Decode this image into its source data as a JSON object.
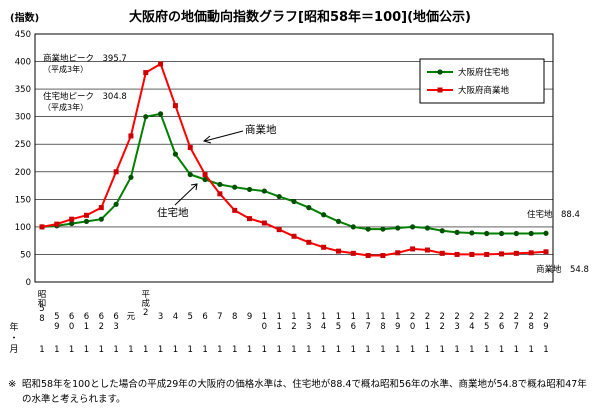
{
  "page": {
    "title": "大阪府の地価動向指数グラフ[昭和58年＝100](地価公示)",
    "y_unit": "(指数)",
    "note_mark": "※",
    "note": "昭和58年を100とした場合の平成29年の大阪府の価格水準は、住宅地が88.4で概ね昭和56年の水準、商業地が54.8で概ね昭和47年の水準と考えられます。"
  },
  "colors": {
    "residential": "#008000",
    "commercial": "#ff0000",
    "marker_res": "#005000",
    "marker_com": "#cc0000"
  },
  "chart_data": {
    "type": "line",
    "title": "大阪府の地価動向指数グラフ[昭和58年＝100](地価公示)",
    "ylabel": "(指数)",
    "xlabel": "年・月",
    "ylim": [
      0,
      450
    ],
    "yticks": [
      0,
      50,
      100,
      150,
      200,
      250,
      300,
      350,
      400,
      450
    ],
    "grid": true,
    "legend": "top-right",
    "era_labels": [
      {
        "text": "昭和",
        "index": 0
      },
      {
        "text": "平成",
        "index": 7
      }
    ],
    "categories": [
      "58",
      "59",
      "60",
      "61",
      "62",
      "63",
      "元",
      "2",
      "3",
      "4",
      "5",
      "6",
      "7",
      "8",
      "9",
      "10",
      "11",
      "12",
      "13",
      "14",
      "15",
      "16",
      "17",
      "18",
      "19",
      "20",
      "21",
      "22",
      "23",
      "24",
      "25",
      "26",
      "27",
      "28",
      "29"
    ],
    "month_label": "1",
    "series": [
      {
        "name": "大阪府住宅地",
        "values": [
          100,
          102,
          106,
          110,
          114,
          141,
          190,
          300,
          305,
          232,
          195,
          186,
          177,
          172,
          168,
          165,
          155,
          146,
          135,
          122,
          110,
          100,
          96,
          96,
          98,
          100,
          98,
          93,
          90,
          89,
          88,
          88,
          88,
          88,
          88.4
        ]
      },
      {
        "name": "大阪府商業地",
        "values": [
          100,
          105,
          114,
          121,
          135,
          200,
          265,
          380,
          395.7,
          320,
          244,
          195,
          160,
          130,
          115,
          107,
          95,
          83,
          72,
          63,
          56,
          52,
          48,
          48,
          53,
          60,
          58,
          52,
          50,
          50,
          50,
          51,
          52,
          53,
          54.8
        ]
      }
    ],
    "annotations": {
      "com_peak": "商業地ピーク　395.7",
      "com_peak_sub": "（平成3年）",
      "res_peak": "住宅地ピーク　304.8",
      "res_peak_sub": "（平成3年）",
      "com_label": "商業地",
      "res_label": "住宅地",
      "res_end": "住宅地　88.4",
      "com_end": "商業地　54.8"
    },
    "x_axis_side_labels": [
      "年",
      "・",
      "月"
    ]
  }
}
